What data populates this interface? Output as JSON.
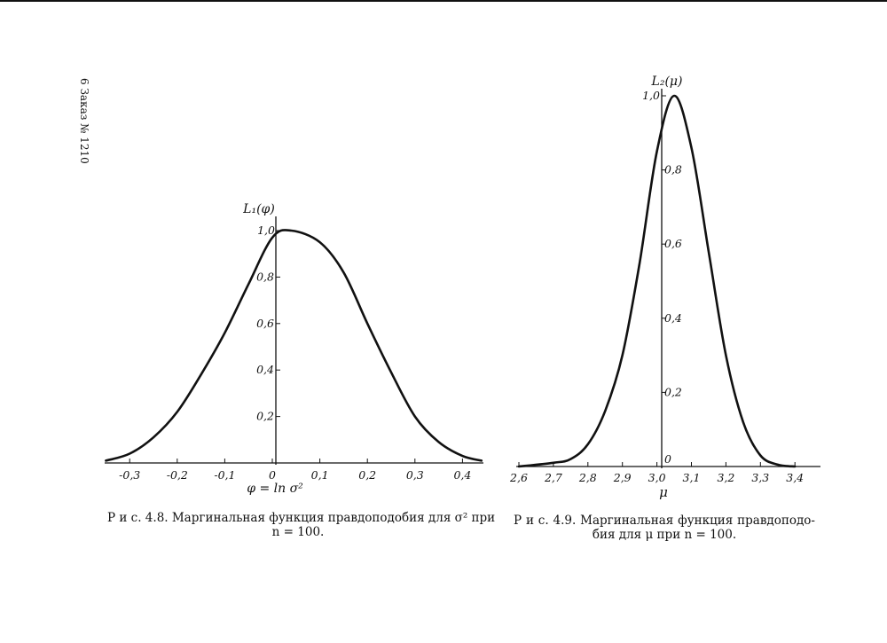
{
  "margin_note": "6 Заказ № 1210",
  "chart_data": [
    {
      "type": "line",
      "ylabel": "L₁(φ)",
      "xlabel": "φ = ln σ²",
      "xlim": [
        -0.35,
        0.44
      ],
      "ylim": [
        0,
        1.0
      ],
      "x_ticks": [
        "-0,3",
        "-0,2",
        "-0,1",
        "0",
        "0,1",
        "0,2",
        "0,3",
        "0,4"
      ],
      "x_tick_values": [
        -0.3,
        -0.2,
        -0.1,
        0,
        0.1,
        0.2,
        0.3,
        0.4
      ],
      "y_ticks": [
        "0,2",
        "0,4",
        "0,6",
        "0,8",
        "1,0"
      ],
      "y_tick_values": [
        0.2,
        0.4,
        0.6,
        0.8,
        1.0
      ],
      "grid": false,
      "series": [
        {
          "x": [
            -0.35,
            -0.3,
            -0.25,
            -0.2,
            -0.15,
            -0.1,
            -0.05,
            0,
            0.04,
            0.1,
            0.15,
            0.2,
            0.25,
            0.3,
            0.35,
            0.4,
            0.44
          ],
          "y": [
            0.01,
            0.04,
            0.11,
            0.22,
            0.38,
            0.56,
            0.77,
            0.97,
            1.0,
            0.95,
            0.82,
            0.6,
            0.39,
            0.2,
            0.09,
            0.03,
            0.01
          ]
        }
      ],
      "caption": {
        "line1": "Р и с.  4.8. Маргинальная функция правдоподобия для σ² при",
        "line2": "n = 100."
      }
    },
    {
      "type": "line",
      "ylabel": "L₂(μ)",
      "xlabel": "μ",
      "xlim": [
        2.6,
        3.45
      ],
      "ylim": [
        0,
        1.0
      ],
      "x_ticks": [
        "2,6",
        "2,7",
        "2,8",
        "2,9",
        "3,0",
        "3,1",
        "3,2",
        "3,3",
        "3,4"
      ],
      "x_tick_values": [
        2.6,
        2.7,
        2.8,
        2.9,
        3.0,
        3.1,
        3.2,
        3.3,
        3.4
      ],
      "y_ticks": [
        "0",
        "0,2",
        "0,4",
        "0,6",
        "0,8",
        "1,0"
      ],
      "y_tick_values": [
        0,
        0.2,
        0.4,
        0.6,
        0.8,
        1.0
      ],
      "grid": false,
      "series": [
        {
          "x": [
            2.6,
            2.7,
            2.75,
            2.8,
            2.85,
            2.9,
            2.95,
            3.0,
            3.05,
            3.1,
            3.15,
            3.2,
            3.25,
            3.3,
            3.35,
            3.4
          ],
          "y": [
            0.0,
            0.01,
            0.02,
            0.06,
            0.15,
            0.3,
            0.55,
            0.85,
            1.0,
            0.86,
            0.58,
            0.3,
            0.12,
            0.03,
            0.005,
            0.0
          ]
        }
      ],
      "caption": {
        "line1": "Р и с.  4.9.  Маргинальная  функция  правдоподо-",
        "line2": "бия для μ при n = 100."
      }
    }
  ]
}
